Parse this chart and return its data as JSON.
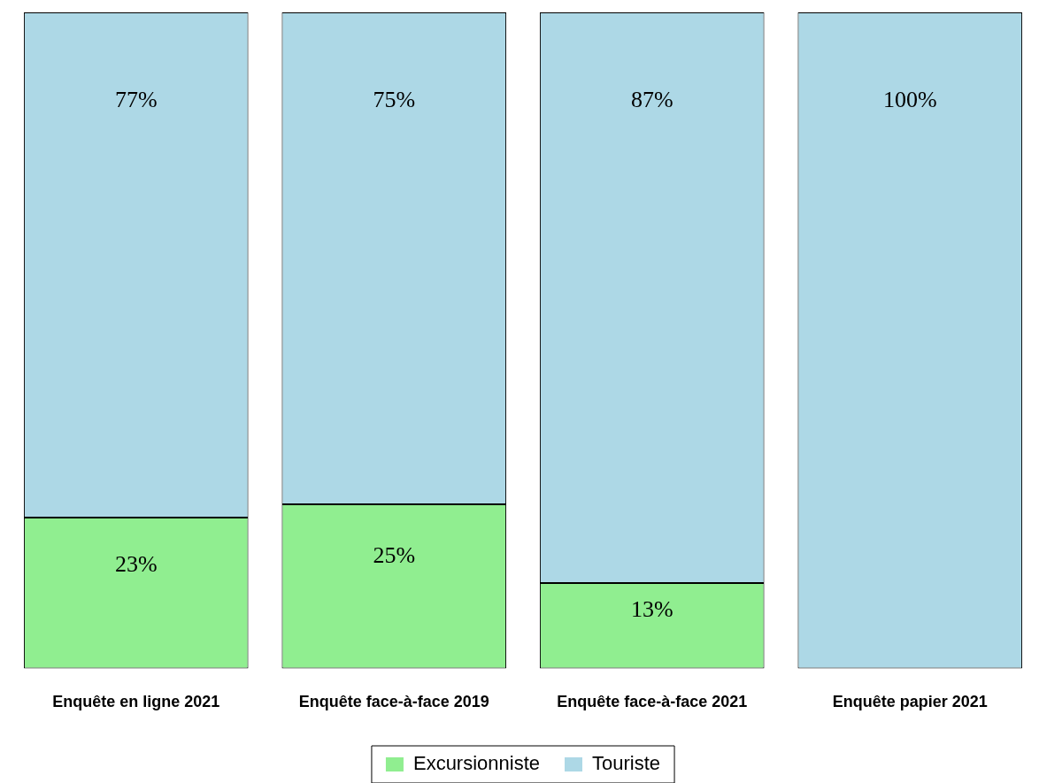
{
  "chart_data": {
    "type": "bar",
    "stacked": true,
    "legend": "bottom",
    "categories": [
      "Enquête en ligne 2021",
      "Enquête face-à-face 2019",
      "Enquête face-à-face 2021",
      "Enquête papier 2021"
    ],
    "series": [
      {
        "name": "Excursionniste",
        "color": "#90ee90",
        "values": [
          23,
          25,
          13,
          0
        ],
        "value_labels": [
          "23%",
          "25%",
          "13%",
          null
        ]
      },
      {
        "name": "Touriste",
        "color": "#add8e6",
        "values": [
          77,
          75,
          87,
          100
        ],
        "value_labels": [
          "77%",
          "75%",
          "87%",
          "100%"
        ]
      }
    ]
  }
}
